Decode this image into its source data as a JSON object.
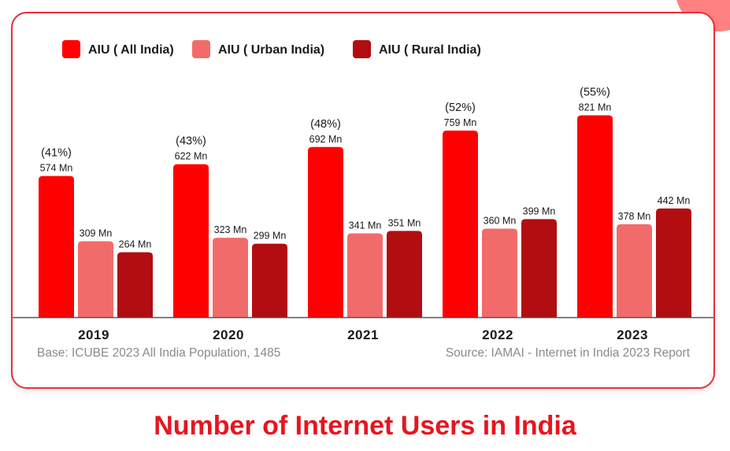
{
  "chart_data": {
    "type": "bar",
    "title": "Number of Internet Users in India",
    "categories": [
      "2019",
      "2020",
      "2021",
      "2022",
      "2023"
    ],
    "series": [
      {
        "name": "AIU ( All India)",
        "color": "#ff0000",
        "values": [
          574,
          622,
          692,
          759,
          821
        ],
        "labels": [
          "574 Mn",
          "622 Mn",
          "692 Mn",
          "759 Mn",
          "821 Mn"
        ]
      },
      {
        "name": "AIU ( Urban India)",
        "color": "#f26b6b",
        "values": [
          309,
          323,
          341,
          360,
          378
        ],
        "labels": [
          "309 Mn",
          "323 Mn",
          "341 Mn",
          "360 Mn",
          "378 Mn"
        ]
      },
      {
        "name": "AIU ( Rural India)",
        "color": "#b20d11",
        "values": [
          264,
          299,
          351,
          399,
          442
        ],
        "labels": [
          "264 Mn",
          "299 Mn",
          "351 Mn",
          "399 Mn",
          "442 Mn"
        ]
      }
    ],
    "percentages": [
      "(41%)",
      "(43%)",
      "(48%)",
      "(52%)",
      "(55%)"
    ],
    "ylim": [
      0,
      900
    ],
    "grid": false,
    "legend_position": "top-left"
  },
  "footnotes": {
    "base": "Base: ICUBE 2023 All India Population, 1485",
    "source": "Source: IAMAI - Internet in India 2023 Report"
  }
}
